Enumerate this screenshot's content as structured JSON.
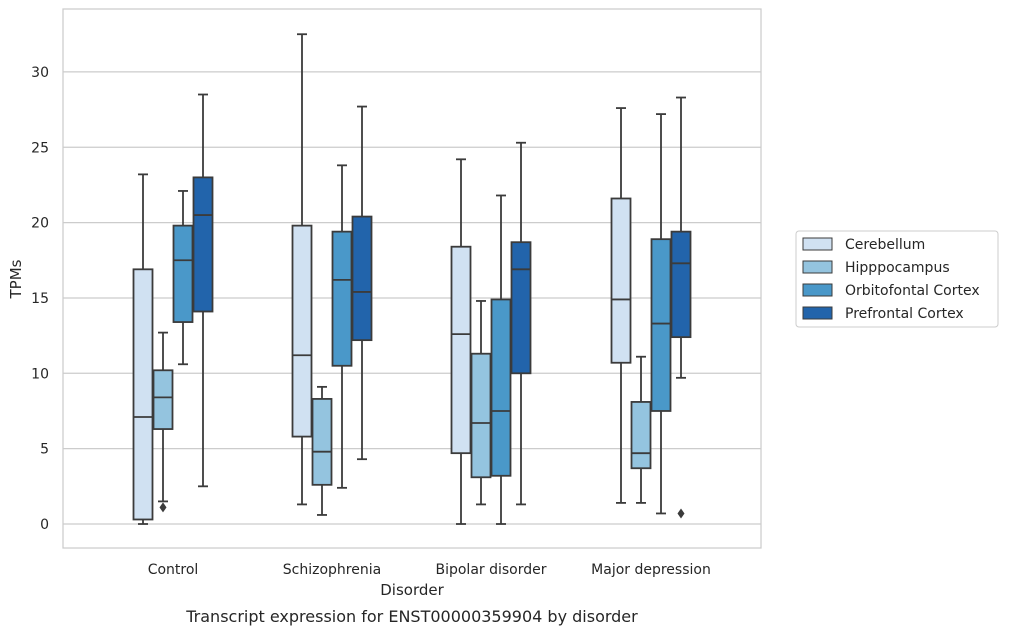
{
  "chart_data": {
    "type": "box",
    "xlabel": "Disorder",
    "ylabel": "TPMs",
    "caption": "Transcript expression for ENST00000359904 by disorder",
    "ylim": [
      -1.5,
      34
    ],
    "yticks": [
      0,
      5,
      10,
      15,
      20,
      25,
      30
    ],
    "categories": [
      "Control",
      "Schizophrenia",
      "Bipolar disorder",
      "Major depression"
    ],
    "grid": "horizontal",
    "legend_position": "right",
    "series": [
      {
        "name": "Cerebellum",
        "color": "#d0e1f2",
        "boxes": [
          {
            "whislo": 0.0,
            "q1": 0.3,
            "med": 7.1,
            "q3": 16.9,
            "whishi": 23.2,
            "fliers": []
          },
          {
            "whislo": 1.3,
            "q1": 5.8,
            "med": 11.2,
            "q3": 19.8,
            "whishi": 32.5,
            "fliers": []
          },
          {
            "whislo": 0.0,
            "q1": 4.7,
            "med": 12.6,
            "q3": 18.4,
            "whishi": 24.2,
            "fliers": []
          },
          {
            "whislo": 1.4,
            "q1": 10.7,
            "med": 14.9,
            "q3": 21.6,
            "whishi": 27.6,
            "fliers": []
          }
        ]
      },
      {
        "name": "Hipppocampus",
        "color": "#94c4df",
        "boxes": [
          {
            "whislo": 1.5,
            "q1": 6.3,
            "med": 8.4,
            "q3": 10.2,
            "whishi": 12.7,
            "fliers": [
              1.1
            ]
          },
          {
            "whislo": 0.6,
            "q1": 2.6,
            "med": 4.8,
            "q3": 8.3,
            "whishi": 9.1,
            "fliers": []
          },
          {
            "whislo": 1.3,
            "q1": 3.1,
            "med": 6.7,
            "q3": 11.3,
            "whishi": 14.8,
            "fliers": []
          },
          {
            "whislo": 1.4,
            "q1": 3.7,
            "med": 4.7,
            "q3": 8.1,
            "whishi": 11.1,
            "fliers": []
          }
        ]
      },
      {
        "name": "Orbitofontal Cortex",
        "color": "#4a98c9",
        "boxes": [
          {
            "whislo": 10.6,
            "q1": 13.4,
            "med": 17.5,
            "q3": 19.8,
            "whishi": 22.1,
            "fliers": []
          },
          {
            "whislo": 2.4,
            "q1": 10.5,
            "med": 16.2,
            "q3": 19.4,
            "whishi": 23.8,
            "fliers": []
          },
          {
            "whislo": 0.0,
            "q1": 3.2,
            "med": 7.5,
            "q3": 14.9,
            "whishi": 21.8,
            "fliers": []
          },
          {
            "whislo": 0.7,
            "q1": 7.5,
            "med": 13.3,
            "q3": 18.9,
            "whishi": 27.2,
            "fliers": []
          }
        ]
      },
      {
        "name": "Prefrontal Cortex",
        "color": "#2264ab",
        "boxes": [
          {
            "whislo": 2.5,
            "q1": 14.1,
            "med": 20.5,
            "q3": 23.0,
            "whishi": 28.5,
            "fliers": []
          },
          {
            "whislo": 4.3,
            "q1": 12.2,
            "med": 15.4,
            "q3": 20.4,
            "whishi": 27.7,
            "fliers": []
          },
          {
            "whislo": 1.3,
            "q1": 10.0,
            "med": 16.9,
            "q3": 18.7,
            "whishi": 25.3,
            "fliers": []
          },
          {
            "whislo": 9.7,
            "q1": 12.4,
            "med": 17.3,
            "q3": 19.4,
            "whishi": 28.3,
            "fliers": [
              0.7
            ]
          }
        ]
      }
    ]
  }
}
